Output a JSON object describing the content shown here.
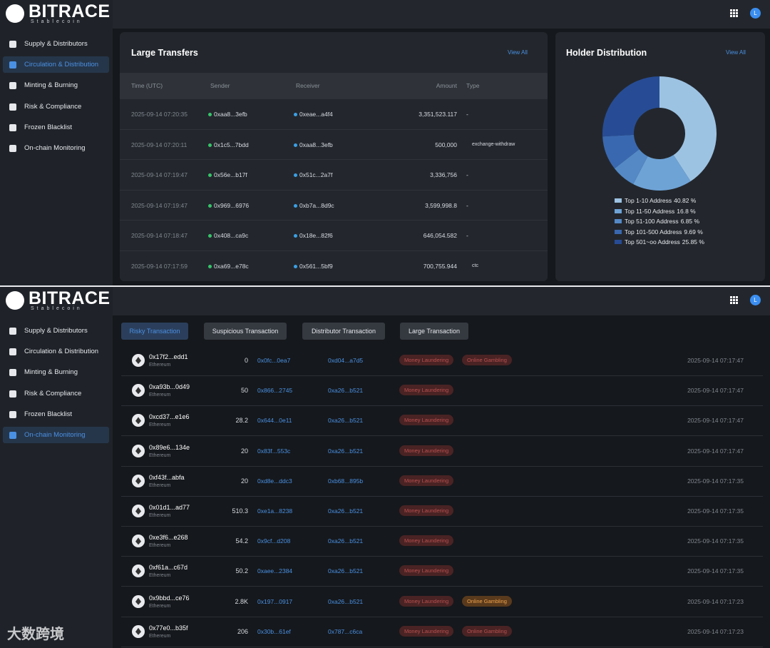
{
  "top": {
    "logo": "BITRACE",
    "logo_sub": "Stablecoin",
    "avatar": "L",
    "nav": [
      "Supply & Distributors",
      "Circulation & Distribution",
      "Minting & Burning",
      "Risk & Compliance",
      "Frozen Blacklist",
      "On-chain Monitoring"
    ],
    "large_transfers": {
      "title": "Large Transfers",
      "view_all": "View All",
      "columns": [
        "Time (UTC)",
        "Sender",
        "Receiver",
        "Amount",
        "Type"
      ],
      "rows": [
        [
          "2025-09-14 07:20:35",
          "0xaa8...3efb",
          "0xeae...a4f4",
          "3,351,523.117",
          "-"
        ],
        [
          "2025-09-14 07:20:11",
          "0x1c5...7bdd",
          "0xaa8...3efb",
          "500,000",
          "exchange-withdraw"
        ],
        [
          "2025-09-14 07:19:47",
          "0x56e...b17f",
          "0x51c...2a7f",
          "3,336,756",
          "-"
        ],
        [
          "2025-09-14 07:19:47",
          "0x969...6976",
          "0xb7a...8d9c",
          "3,599,998.8",
          "-"
        ],
        [
          "2025-09-14 07:18:47",
          "0x408...ca9c",
          "0x18e...82f6",
          "646,054.582",
          "-"
        ],
        [
          "2025-09-14 07:17:59",
          "0xa69...e78c",
          "0x561...5bf9",
          "700,755.944",
          "ctc"
        ]
      ]
    },
    "holder_view_all": "View All"
  },
  "chart_data": {
    "type": "pie",
    "title": "Holder Distribution",
    "categories": [
      "Top 1-10 Address",
      "Top 11-50 Address",
      "Top 51-100 Address",
      "Top 101-500 Address",
      "Top 501~oo Address"
    ],
    "values": [
      40.82,
      16.8,
      6.85,
      9.69,
      25.85
    ],
    "value_labels": [
      "40.82 %",
      "16.8 %",
      "6.85 %",
      "9.69 %",
      "25.85 %"
    ],
    "colors": [
      "#9dc3e3",
      "#6ea3d6",
      "#5489c6",
      "#3a68b0",
      "#274c95"
    ]
  },
  "bottom": {
    "logo": "BITRACE",
    "logo_sub": "Stablecoin",
    "avatar": "L",
    "nav": [
      "Supply & Distributors",
      "Circulation & Distribution",
      "Minting & Burning",
      "Risk & Compliance",
      "Frozen Blacklist",
      "On-chain Monitoring"
    ],
    "tabs": [
      "Risky Transaction",
      "Suspicious Transaction",
      "Distributor Transaction",
      "Large Transaction"
    ],
    "rows": [
      [
        "0x17f2...edd1",
        "Ethereum",
        "0",
        "0x0fc...0ea7",
        "0xd04...a7d5",
        [
          "Money Laundering",
          "Online Gambling"
        ],
        "2025-09-14 07:17:47"
      ],
      [
        "0xa93b...0d49",
        "Ethereum",
        "50",
        "0x866...2745",
        "0xa26...b521",
        [
          "Money Laundering"
        ],
        "2025-09-14 07:17:47"
      ],
      [
        "0xcd37...e1e6",
        "Ethereum",
        "28.2",
        "0x644...0e11",
        "0xa26...b521",
        [
          "Money Laundering"
        ],
        "2025-09-14 07:17:47"
      ],
      [
        "0x89e6...134e",
        "Ethereum",
        "20",
        "0x83f...553c",
        "0xa26...b521",
        [
          "Money Laundering"
        ],
        "2025-09-14 07:17:47"
      ],
      [
        "0xf43f...abfa",
        "Ethereum",
        "20",
        "0xd8e...ddc3",
        "0xb68...895b",
        [
          "Money Laundering"
        ],
        "2025-09-14 07:17:35"
      ],
      [
        "0x01d1...ad77",
        "Ethereum",
        "510.3",
        "0xe1a...8238",
        "0xa26...b521",
        [
          "Money Laundering"
        ],
        "2025-09-14 07:17:35"
      ],
      [
        "0xe3f6...e268",
        "Ethereum",
        "54.2",
        "0x9cf...d208",
        "0xa26...b521",
        [
          "Money Laundering"
        ],
        "2025-09-14 07:17:35"
      ],
      [
        "0xf61a...c67d",
        "Ethereum",
        "50.2",
        "0xaee...2384",
        "0xa26...b521",
        [
          "Money Laundering"
        ],
        "2025-09-14 07:17:35"
      ],
      [
        "0x9bbd...ce76",
        "Ethereum",
        "2.8K",
        "0x197...0917",
        "0xa26...b521",
        [
          "Money Laundering",
          "Online Gambling"
        ],
        "2025-09-14 07:17:23"
      ],
      [
        "0x77e0...b35f",
        "Ethereum",
        "206",
        "0x30b...61ef",
        "0x787...c6ca",
        [
          "Money Laundering",
          "Online Gambling"
        ],
        "2025-09-14 07:17:23"
      ]
    ],
    "watermark": "大数跨境"
  }
}
